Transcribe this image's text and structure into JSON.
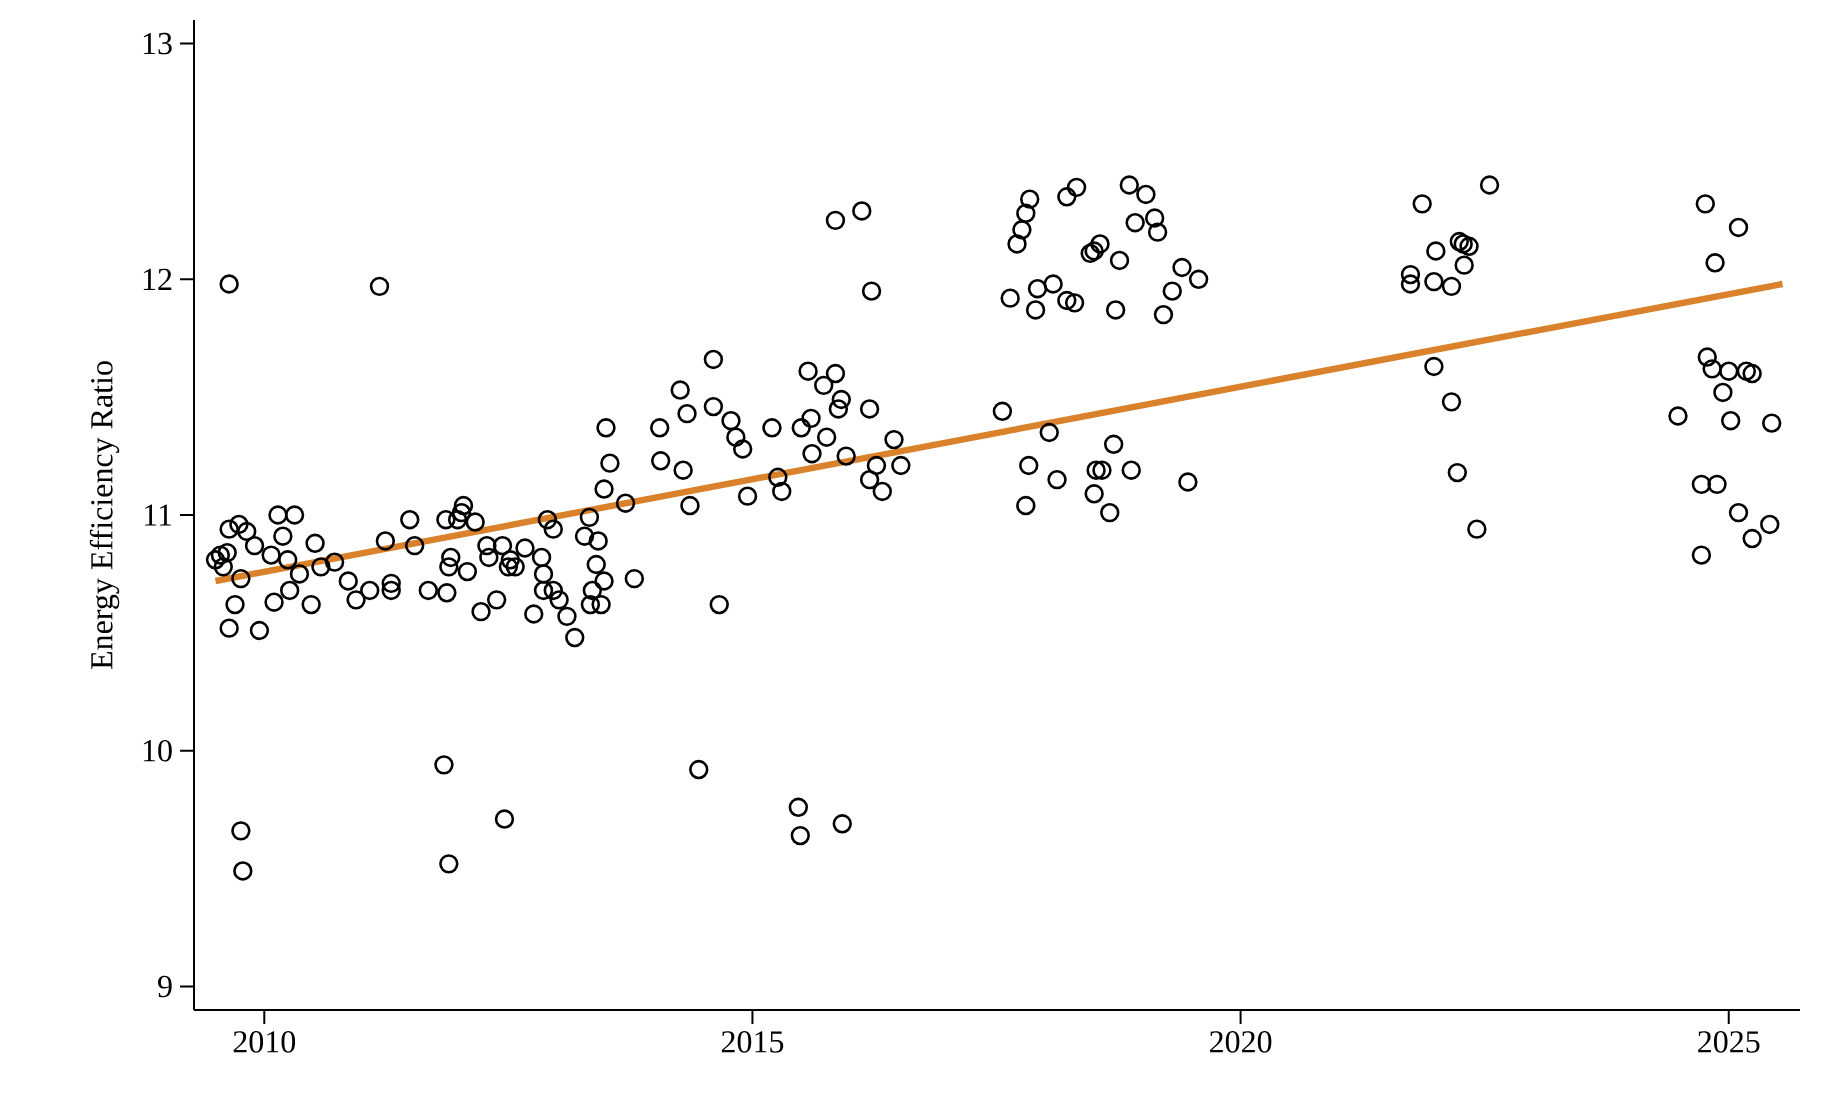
{
  "chart_data": {
    "type": "scatter",
    "ylabel": "Energy Efficiency Ratio",
    "xlim": [
      2009.28,
      2025.73
    ],
    "ylim": [
      8.9,
      13.1
    ],
    "xticks": [
      2010,
      2015,
      2020,
      2025
    ],
    "yticks": [
      9,
      10,
      11,
      12,
      13
    ],
    "series": [
      {
        "marker": "circle",
        "color": "#000000",
        "x": [
          2009.64,
          2009.5,
          2009.55,
          2009.62,
          2009.58,
          2009.64,
          2009.74,
          2009.7,
          2009.64,
          2009.76,
          2009.82,
          2009.9,
          2009.95,
          2010.07,
          2010.14,
          2010.1,
          2010.19,
          2010.24,
          2010.26,
          2010.31,
          2010.36,
          2010.48,
          2010.52,
          2010.58,
          2010.72,
          2010.86,
          2010.94,
          2011.08,
          2011.18,
          2011.24,
          2011.3,
          2011.3,
          2011.49,
          2011.54,
          2011.68,
          2011.84,
          2011.86,
          2011.87,
          2011.89,
          2011.91,
          2011.89,
          2011.98,
          2012.04,
          2012.02,
          2012.08,
          2012.16,
          2012.22,
          2012.28,
          2012.3,
          2012.38,
          2012.46,
          2012.44,
          2012.5,
          2012.52,
          2012.57,
          2012.67,
          2012.76,
          2012.84,
          2012.86,
          2012.86,
          2012.9,
          2012.96,
          2012.96,
          2013.02,
          2013.1,
          2013.18,
          2013.28,
          2013.33,
          2013.34,
          2013.36,
          2013.4,
          2013.42,
          2013.45,
          2013.48,
          2013.48,
          2013.5,
          2013.54,
          2013.7,
          2013.79,
          2014.05,
          2014.06,
          2014.26,
          2014.29,
          2014.33,
          2014.36,
          2014.45,
          2014.6,
          2014.6,
          2014.66,
          2014.78,
          2014.83,
          2014.9,
          2014.95,
          2015.2,
          2015.26,
          2015.3,
          2015.47,
          2015.49,
          2015.5,
          2015.57,
          2015.6,
          2015.61,
          2015.73,
          2015.76,
          2015.85,
          2015.85,
          2015.92,
          2015.91,
          2015.88,
          2015.96,
          2016.12,
          2016.2,
          2016.22,
          2016.2,
          2016.27,
          2016.33,
          2016.45,
          2016.52,
          2017.56,
          2017.64,
          2017.71,
          2017.76,
          2017.8,
          2017.84,
          2017.83,
          2017.8,
          2017.9,
          2017.92,
          2018.04,
          2018.08,
          2018.12,
          2018.22,
          2018.22,
          2018.3,
          2018.32,
          2018.46,
          2018.5,
          2018.56,
          2018.52,
          2018.5,
          2018.58,
          2018.66,
          2018.7,
          2018.72,
          2018.76,
          2018.86,
          2018.92,
          2019.03,
          2019.12,
          2019.15,
          2018.88,
          2019.21,
          2019.3,
          2019.4,
          2019.46,
          2019.57,
          2021.74,
          2021.74,
          2021.86,
          2021.98,
          2022.0,
          2021.98,
          2022.16,
          2022.16,
          2022.22,
          2022.24,
          2022.28,
          2022.34,
          2022.29,
          2022.42,
          2022.55,
          2024.48,
          2024.72,
          2024.72,
          2024.76,
          2024.78,
          2024.83,
          2024.88,
          2024.86,
          2024.94,
          2025.0,
          2025.02,
          2025.1,
          2025.1,
          2025.18,
          2025.24,
          2025.24,
          2025.42,
          2025.44,
          2009.76,
          2009.78
        ],
        "values": [
          11.98,
          10.81,
          10.83,
          10.84,
          10.78,
          10.94,
          10.96,
          10.62,
          10.52,
          10.73,
          10.93,
          10.87,
          10.51,
          10.83,
          11.0,
          10.63,
          10.91,
          10.81,
          10.68,
          11.0,
          10.75,
          10.62,
          10.88,
          10.78,
          10.8,
          10.72,
          10.64,
          10.68,
          11.97,
          10.89,
          10.68,
          10.71,
          10.98,
          10.87,
          10.68,
          9.94,
          10.98,
          10.67,
          10.78,
          10.82,
          9.52,
          10.98,
          11.04,
          11.01,
          10.76,
          10.97,
          10.59,
          10.87,
          10.82,
          10.64,
          9.71,
          10.87,
          10.78,
          10.81,
          10.78,
          10.86,
          10.58,
          10.82,
          10.75,
          10.68,
          10.98,
          10.94,
          10.68,
          10.64,
          10.57,
          10.48,
          10.91,
          10.99,
          10.62,
          10.68,
          10.79,
          10.89,
          10.62,
          10.72,
          11.11,
          11.37,
          11.22,
          11.05,
          10.73,
          11.37,
          11.23,
          11.53,
          11.19,
          11.43,
          11.04,
          9.92,
          11.66,
          11.46,
          10.62,
          11.4,
          11.33,
          11.28,
          11.08,
          11.37,
          11.16,
          11.1,
          9.76,
          9.64,
          11.37,
          11.61,
          11.41,
          11.26,
          11.55,
          11.33,
          12.25,
          11.6,
          9.69,
          11.49,
          11.45,
          11.25,
          12.29,
          11.45,
          11.95,
          11.15,
          11.21,
          11.1,
          11.32,
          11.21,
          11.44,
          11.92,
          12.15,
          12.21,
          12.28,
          12.34,
          11.21,
          11.04,
          11.87,
          11.96,
          11.35,
          11.98,
          11.15,
          11.91,
          12.35,
          11.9,
          12.39,
          12.11,
          12.12,
          12.15,
          11.19,
          11.09,
          11.19,
          11.01,
          11.3,
          11.87,
          12.08,
          12.4,
          12.24,
          12.36,
          12.26,
          12.2,
          11.19,
          11.85,
          11.95,
          12.05,
          11.14,
          12.0,
          12.02,
          11.98,
          12.32,
          11.99,
          12.12,
          11.63,
          11.97,
          11.48,
          11.18,
          12.16,
          12.15,
          12.14,
          12.06,
          10.94,
          12.4,
          11.42,
          11.13,
          10.83,
          12.32,
          11.67,
          11.62,
          11.13,
          12.07,
          11.52,
          11.61,
          11.4,
          11.01,
          12.22,
          11.61,
          11.6,
          10.9,
          10.96,
          11.39,
          9.66,
          9.49
        ]
      },
      {
        "type": "line",
        "color": "#d9822b",
        "x": [
          2009.5,
          2025.55
        ],
        "values": [
          10.72,
          11.98
        ]
      }
    ]
  }
}
